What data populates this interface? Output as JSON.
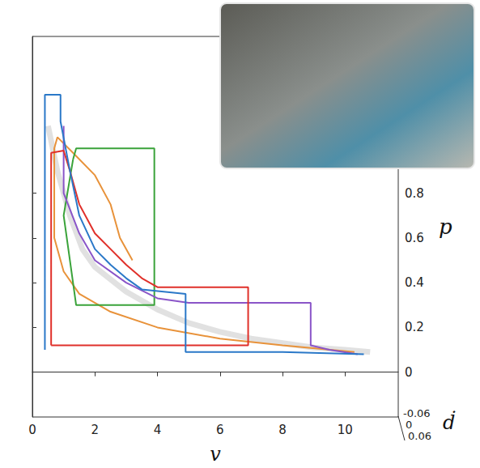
{
  "chart_data": {
    "type": "line",
    "xlabel": "v",
    "ylabel": "p",
    "zlabel": "ḋ",
    "xlim": [
      0,
      11.7
    ],
    "xticks": [
      0,
      2,
      4,
      6,
      8,
      10
    ],
    "ylim": [
      -0.2,
      1.5
    ],
    "yticks": [
      0,
      0.2,
      0.4,
      0.6,
      0.8
    ],
    "zticks": [
      -0.06,
      0,
      0.06
    ],
    "grid": false,
    "series": [
      {
        "color": "#c8c8c8",
        "line_style": "solid",
        "values": [
          [
            0.5,
            1.1
          ],
          [
            0.8,
            0.9
          ],
          [
            1.2,
            0.7
          ],
          [
            1.6,
            0.55
          ],
          [
            2,
            0.47
          ],
          [
            3,
            0.36
          ],
          [
            4,
            0.28
          ],
          [
            5,
            0.22
          ],
          [
            6,
            0.18
          ],
          [
            7,
            0.15
          ],
          [
            8,
            0.13
          ],
          [
            9,
            0.11
          ],
          [
            10,
            0.1
          ],
          [
            10.8,
            0.09
          ]
        ]
      },
      {
        "color": "#e8923a",
        "line_style": "solid",
        "values": [
          [
            3.2,
            0.5
          ],
          [
            2.8,
            0.6
          ],
          [
            2.5,
            0.75
          ],
          [
            2.0,
            0.88
          ],
          [
            1.3,
            0.98
          ],
          [
            0.8,
            1.05
          ],
          [
            0.7,
            1.0
          ],
          [
            0.7,
            0.6
          ],
          [
            1.0,
            0.45
          ],
          [
            1.5,
            0.35
          ],
          [
            2.5,
            0.27
          ],
          [
            4,
            0.2
          ],
          [
            6,
            0.15
          ],
          [
            8,
            0.12
          ],
          [
            10.3,
            0.09
          ]
        ]
      },
      {
        "color": "#3aa33a",
        "line_style": "solid",
        "values": [
          [
            1.3,
            0.95
          ],
          [
            1.4,
            1.0
          ],
          [
            3.9,
            1.0
          ],
          [
            3.9,
            0.3
          ],
          [
            1.4,
            0.3
          ],
          [
            1.2,
            0.5
          ],
          [
            1.0,
            0.7
          ],
          [
            1.3,
            0.95
          ]
        ]
      },
      {
        "color": "#8a55c8",
        "line_style": "solid",
        "values": [
          [
            1.0,
            1.1
          ],
          [
            1.0,
            0.8
          ],
          [
            1.5,
            0.62
          ],
          [
            2.0,
            0.5
          ],
          [
            3.0,
            0.4
          ],
          [
            4.0,
            0.33
          ],
          [
            5.0,
            0.31
          ],
          [
            8.9,
            0.31
          ],
          [
            8.9,
            0.12
          ],
          [
            9.5,
            0.1
          ],
          [
            10.4,
            0.08
          ]
        ]
      },
      {
        "color": "#e0302a",
        "line_style": "solid",
        "values": [
          [
            0.6,
            0.12
          ],
          [
            0.6,
            0.98
          ],
          [
            1.0,
            0.99
          ],
          [
            1.2,
            0.9
          ],
          [
            1.5,
            0.75
          ],
          [
            2.0,
            0.62
          ],
          [
            2.5,
            0.55
          ],
          [
            3.0,
            0.48
          ],
          [
            3.5,
            0.42
          ],
          [
            4.0,
            0.38
          ],
          [
            6.9,
            0.38
          ],
          [
            6.9,
            0.12
          ],
          [
            0.6,
            0.12
          ]
        ]
      },
      {
        "color": "#2a78c8",
        "line_style": "solid",
        "values": [
          [
            0.4,
            0.1
          ],
          [
            0.4,
            1.24
          ],
          [
            0.9,
            1.24
          ],
          [
            0.9,
            1.12
          ],
          [
            1.2,
            0.9
          ],
          [
            1.5,
            0.7
          ],
          [
            2.0,
            0.55
          ],
          [
            2.5,
            0.48
          ],
          [
            3.0,
            0.42
          ],
          [
            3.5,
            0.37
          ],
          [
            4.9,
            0.35
          ],
          [
            4.9,
            0.09
          ],
          [
            6,
            0.09
          ],
          [
            8,
            0.09
          ],
          [
            10.6,
            0.08
          ]
        ]
      }
    ]
  }
}
